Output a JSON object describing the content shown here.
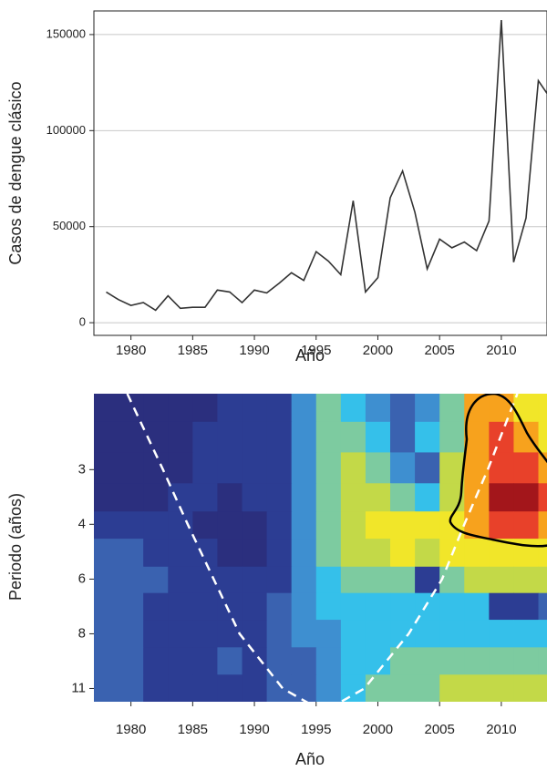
{
  "chart_data": [
    {
      "type": "line",
      "ylabel": "Casos de dengue clásico",
      "xlabel": "Año",
      "color": "#333333",
      "x": [
        1978,
        1979,
        1980,
        1981,
        1982,
        1983,
        1984,
        1985,
        1986,
        1987,
        1988,
        1989,
        1990,
        1991,
        1992,
        1993,
        1994,
        1995,
        1996,
        1997,
        1998,
        1999,
        2000,
        2001,
        2002,
        2003,
        2004,
        2005,
        2006,
        2007,
        2008,
        2009,
        2010,
        2011,
        2012,
        2013,
        2014
      ],
      "values": [
        16000,
        12000,
        9000,
        10500,
        6500,
        14000,
        7500,
        8000,
        8000,
        17000,
        16000,
        10500,
        17000,
        15500,
        20500,
        26000,
        22000,
        37000,
        32000,
        25000,
        63500,
        16000,
        23500,
        65000,
        79000,
        57500,
        28000,
        43500,
        39000,
        42000,
        37500,
        53000,
        157500,
        31500,
        54500,
        126000,
        116500
      ],
      "xlim": [
        1977,
        2013.7
      ],
      "xticks": [
        1980,
        1985,
        1990,
        1995,
        2000,
        2005,
        2010
      ],
      "ylim": [
        -6600,
        162300
      ],
      "yticks": [
        0,
        50000,
        100000,
        150000
      ],
      "grid": true
    },
    {
      "type": "heatmap",
      "ylabel": "Periodo (años)",
      "xlabel": "Año",
      "x": [
        1978,
        1980,
        1982,
        1984,
        1986,
        1988,
        1990,
        1992,
        1994,
        1996,
        1998,
        2000,
        2002,
        2004,
        2006,
        2008,
        2010,
        2012,
        2014
      ],
      "y": [
        1.9,
        2.3,
        2.8,
        3.4,
        4,
        4.8,
        5.7,
        6.7,
        8,
        9.5,
        11.3
      ],
      "z": [
        [
          0,
          0,
          0,
          0,
          0,
          1,
          1,
          1,
          3,
          5,
          4,
          3,
          2,
          3,
          5,
          8,
          8,
          7,
          7
        ],
        [
          0,
          0,
          0,
          0,
          1,
          1,
          1,
          1,
          3,
          5,
          5,
          4,
          2,
          4,
          5,
          8,
          9,
          8,
          7
        ],
        [
          0,
          0,
          0,
          0,
          1,
          1,
          1,
          1,
          3,
          5,
          6,
          5,
          3,
          2,
          6,
          8,
          9,
          9,
          8
        ],
        [
          0,
          0,
          0,
          1,
          1,
          0,
          1,
          1,
          3,
          5,
          6,
          6,
          5,
          4,
          6,
          8,
          10,
          10,
          9
        ],
        [
          1,
          1,
          1,
          1,
          0,
          0,
          0,
          1,
          3,
          5,
          6,
          7,
          7,
          7,
          7,
          8,
          9,
          9,
          8
        ],
        [
          2,
          2,
          1,
          1,
          1,
          0,
          0,
          1,
          3,
          5,
          6,
          6,
          7,
          6,
          7,
          7,
          7,
          7,
          7
        ],
        [
          2,
          2,
          2,
          1,
          1,
          1,
          1,
          1,
          3,
          4,
          5,
          5,
          5,
          1,
          5,
          6,
          6,
          6,
          6
        ],
        [
          2,
          2,
          1,
          1,
          1,
          1,
          1,
          2,
          3,
          4,
          4,
          4,
          4,
          4,
          4,
          4,
          1,
          1,
          2
        ],
        [
          2,
          2,
          1,
          1,
          1,
          1,
          1,
          2,
          3,
          3,
          4,
          4,
          4,
          4,
          4,
          4,
          4,
          4,
          4
        ],
        [
          2,
          2,
          1,
          1,
          1,
          2,
          1,
          2,
          2,
          3,
          4,
          4,
          5,
          5,
          5,
          5,
          5,
          5,
          5
        ],
        [
          2,
          2,
          1,
          1,
          1,
          1,
          1,
          2,
          2,
          3,
          4,
          5,
          5,
          5,
          6,
          6,
          6,
          6,
          6
        ]
      ],
      "zlim": [
        0,
        10
      ],
      "colorscale": [
        "#2b2f7e",
        "#2c3d93",
        "#3a62b0",
        "#3e8fd0",
        "#35c0ea",
        "#7dcba0",
        "#c3d948",
        "#f1e629",
        "#f7a21d",
        "#e8412a",
        "#a3161b"
      ],
      "xlim": [
        1977,
        2013.7
      ],
      "xticks": [
        1980,
        1985,
        1990,
        1995,
        2000,
        2005,
        2010
      ],
      "ylim": [
        1.75,
        12.3
      ],
      "ylog": true,
      "yticks": [
        {
          "value": 2.83,
          "label": "3"
        },
        4,
        {
          "value": 5.66,
          "label": "6"
        },
        8,
        {
          "value": 11.31,
          "label": "11"
        }
      ],
      "cone": {
        "color": "#ffffff",
        "dashed": true,
        "x": [
          1979.7,
          1982.6,
          1984.6,
          1986.7,
          1988.8,
          1992.3,
          1995.6,
          1998.9,
          2002.5,
          2005.2,
          2007.0,
          2008.9,
          2011.3
        ],
        "y": [
          1.75,
          2.83,
          4,
          5.66,
          8,
          11.31,
          13.1,
          11.31,
          8,
          5.66,
          4,
          2.83,
          1.75
        ]
      }
    }
  ]
}
